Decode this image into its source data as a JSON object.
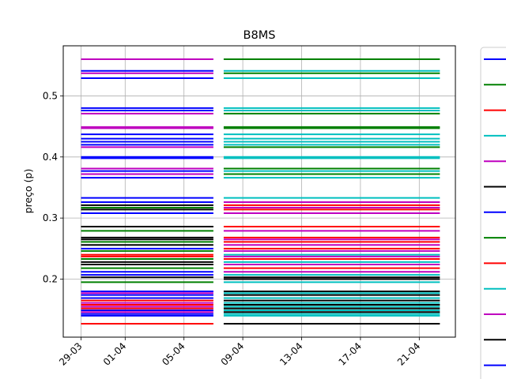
{
  "chart_data": {
    "type": "line",
    "title": "B8MS",
    "xlabel": "",
    "ylabel": "preço (p)",
    "x_ticks": [
      "29-03",
      "01-04",
      "05-04",
      "09-04",
      "13-04",
      "17-04",
      "21-04"
    ],
    "x_tick_days": [
      0,
      3,
      7,
      11,
      15,
      19,
      23
    ],
    "ylim": [
      0.105,
      0.582
    ],
    "y_ticks": [
      0.2,
      0.3,
      0.4,
      0.5
    ],
    "y_tick_labels": [
      "0.2",
      "0.3",
      "0.4",
      "0.5"
    ],
    "grid": true,
    "legend": "right, partially cut off (line samples only)",
    "series_colors": [
      "#0000ff",
      "#008000",
      "#ff0000",
      "#00bfbf",
      "#bf00bf",
      "#000000"
    ],
    "legend_colors": [
      "#0000ff",
      "#008000",
      "#ff0000",
      "#00bfbf",
      "#bf00bf",
      "#000000",
      "#0000ff",
      "#008000",
      "#ff0000",
      "#00bfbf",
      "#bf00bf",
      "#000000",
      "#0000ff"
    ],
    "segments": [
      {
        "x_start": "29-03",
        "x_end": "07-04"
      },
      {
        "x_start": "08-04",
        "x_end": "22-04"
      }
    ],
    "levels_segment_1": [
      {
        "y": 0.56,
        "c": "#bf00bf"
      },
      {
        "y": 0.541,
        "c": "#0000ff"
      },
      {
        "y": 0.537,
        "c": "#bf00bf"
      },
      {
        "y": 0.529,
        "c": "#0000ff"
      },
      {
        "y": 0.48,
        "c": "#0000ff"
      },
      {
        "y": 0.476,
        "c": "#0000ff"
      },
      {
        "y": 0.471,
        "c": "#bf00bf"
      },
      {
        "y": 0.449,
        "c": "#bf00bf"
      },
      {
        "y": 0.447,
        "c": "#bf00bf"
      },
      {
        "y": 0.437,
        "c": "#0000ff"
      },
      {
        "y": 0.43,
        "c": "#0000ff"
      },
      {
        "y": 0.425,
        "c": "#0000ff"
      },
      {
        "y": 0.42,
        "c": "#0000ff"
      },
      {
        "y": 0.416,
        "c": "#bf00bf"
      },
      {
        "y": 0.4,
        "c": "#0000ff"
      },
      {
        "y": 0.398,
        "c": "#0000ff"
      },
      {
        "y": 0.381,
        "c": "#bf00bf"
      },
      {
        "y": 0.377,
        "c": "#0000ff"
      },
      {
        "y": 0.372,
        "c": "#bf00bf"
      },
      {
        "y": 0.366,
        "c": "#0000ff"
      },
      {
        "y": 0.333,
        "c": "#0000ff"
      },
      {
        "y": 0.326,
        "c": "#0000ff"
      },
      {
        "y": 0.321,
        "c": "#000000"
      },
      {
        "y": 0.317,
        "c": "#008000"
      },
      {
        "y": 0.314,
        "c": "#000000"
      },
      {
        "y": 0.308,
        "c": "#0000ff"
      },
      {
        "y": 0.286,
        "c": "#000000"
      },
      {
        "y": 0.279,
        "c": "#008000"
      },
      {
        "y": 0.268,
        "c": "#000000"
      },
      {
        "y": 0.265,
        "c": "#000000"
      },
      {
        "y": 0.261,
        "c": "#008000"
      },
      {
        "y": 0.256,
        "c": "#000000"
      },
      {
        "y": 0.25,
        "c": "#0000ff"
      },
      {
        "y": 0.246,
        "c": "#008000"
      },
      {
        "y": 0.24,
        "c": "#ff0000"
      },
      {
        "y": 0.237,
        "c": "#ff0000"
      },
      {
        "y": 0.233,
        "c": "#008000"
      },
      {
        "y": 0.228,
        "c": "#000000"
      },
      {
        "y": 0.224,
        "c": "#000000"
      },
      {
        "y": 0.218,
        "c": "#008000"
      },
      {
        "y": 0.212,
        "c": "#0000ff"
      },
      {
        "y": 0.207,
        "c": "#0000ff"
      },
      {
        "y": 0.203,
        "c": "#000000"
      },
      {
        "y": 0.195,
        "c": "#008000"
      },
      {
        "y": 0.18,
        "c": "#0000ff"
      },
      {
        "y": 0.177,
        "c": "#bf00bf"
      },
      {
        "y": 0.174,
        "c": "#0000ff"
      },
      {
        "y": 0.169,
        "c": "#0000ff"
      },
      {
        "y": 0.165,
        "c": "#ff0000"
      },
      {
        "y": 0.161,
        "c": "#bf00bf"
      },
      {
        "y": 0.158,
        "c": "#ff0000"
      },
      {
        "y": 0.155,
        "c": "#bf00bf"
      },
      {
        "y": 0.152,
        "c": "#ff0000"
      },
      {
        "y": 0.149,
        "c": "#0000ff"
      },
      {
        "y": 0.146,
        "c": "#bf00bf"
      },
      {
        "y": 0.143,
        "c": "#0000ff"
      },
      {
        "y": 0.14,
        "c": "#0000ff"
      },
      {
        "y": 0.127,
        "c": "#ff0000"
      }
    ],
    "levels_segment_2": [
      {
        "y": 0.56,
        "c": "#008000"
      },
      {
        "y": 0.541,
        "c": "#00bfbf"
      },
      {
        "y": 0.537,
        "c": "#008000"
      },
      {
        "y": 0.529,
        "c": "#00bfbf"
      },
      {
        "y": 0.48,
        "c": "#00bfbf"
      },
      {
        "y": 0.476,
        "c": "#00bfbf"
      },
      {
        "y": 0.471,
        "c": "#008000"
      },
      {
        "y": 0.449,
        "c": "#008000"
      },
      {
        "y": 0.447,
        "c": "#008000"
      },
      {
        "y": 0.437,
        "c": "#00bfbf"
      },
      {
        "y": 0.43,
        "c": "#00bfbf"
      },
      {
        "y": 0.425,
        "c": "#00bfbf"
      },
      {
        "y": 0.42,
        "c": "#00bfbf"
      },
      {
        "y": 0.416,
        "c": "#008000"
      },
      {
        "y": 0.4,
        "c": "#00bfbf"
      },
      {
        "y": 0.398,
        "c": "#00bfbf"
      },
      {
        "y": 0.381,
        "c": "#008000"
      },
      {
        "y": 0.377,
        "c": "#00bfbf"
      },
      {
        "y": 0.372,
        "c": "#008000"
      },
      {
        "y": 0.366,
        "c": "#00bfbf"
      },
      {
        "y": 0.333,
        "c": "#00bfbf"
      },
      {
        "y": 0.326,
        "c": "#bf00bf"
      },
      {
        "y": 0.321,
        "c": "#ff0000"
      },
      {
        "y": 0.317,
        "c": "#bf00bf"
      },
      {
        "y": 0.314,
        "c": "#ff0000"
      },
      {
        "y": 0.308,
        "c": "#bf00bf"
      },
      {
        "y": 0.286,
        "c": "#ff0000"
      },
      {
        "y": 0.279,
        "c": "#bf00bf"
      },
      {
        "y": 0.268,
        "c": "#ff0000"
      },
      {
        "y": 0.265,
        "c": "#bf00bf"
      },
      {
        "y": 0.261,
        "c": "#ff0000"
      },
      {
        "y": 0.256,
        "c": "#bf00bf"
      },
      {
        "y": 0.25,
        "c": "#ff0000"
      },
      {
        "y": 0.246,
        "c": "#bf00bf"
      },
      {
        "y": 0.24,
        "c": "#00bfbf"
      },
      {
        "y": 0.237,
        "c": "#bf00bf"
      },
      {
        "y": 0.233,
        "c": "#ff0000"
      },
      {
        "y": 0.228,
        "c": "#00bfbf"
      },
      {
        "y": 0.224,
        "c": "#bf00bf"
      },
      {
        "y": 0.218,
        "c": "#ff0000"
      },
      {
        "y": 0.212,
        "c": "#bf00bf"
      },
      {
        "y": 0.207,
        "c": "#00bfbf"
      },
      {
        "y": 0.203,
        "c": "#000000"
      },
      {
        "y": 0.2,
        "c": "#000000"
      },
      {
        "y": 0.195,
        "c": "#00bfbf"
      },
      {
        "y": 0.18,
        "c": "#000000"
      },
      {
        "y": 0.177,
        "c": "#00bfbf"
      },
      {
        "y": 0.174,
        "c": "#000000"
      },
      {
        "y": 0.169,
        "c": "#00bfbf"
      },
      {
        "y": 0.165,
        "c": "#000000"
      },
      {
        "y": 0.161,
        "c": "#00bfbf"
      },
      {
        "y": 0.158,
        "c": "#000000"
      },
      {
        "y": 0.155,
        "c": "#00bfbf"
      },
      {
        "y": 0.152,
        "c": "#000000"
      },
      {
        "y": 0.149,
        "c": "#00bfbf"
      },
      {
        "y": 0.146,
        "c": "#000000"
      },
      {
        "y": 0.143,
        "c": "#00bfbf"
      },
      {
        "y": 0.14,
        "c": "#00bfbf"
      },
      {
        "y": 0.127,
        "c": "#000000"
      }
    ]
  }
}
